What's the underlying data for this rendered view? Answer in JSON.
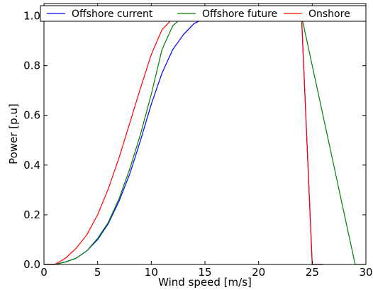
{
  "chart_data": {
    "type": "line",
    "title": "",
    "xlabel": "Wind speed [m/s]",
    "ylabel": "Power [p.u]",
    "xlim": [
      0,
      30
    ],
    "ylim": [
      0,
      1.05
    ],
    "xticks": [
      0,
      5,
      10,
      15,
      20,
      25,
      30
    ],
    "xtick_labels": [
      "0",
      "5",
      "10",
      "15",
      "20",
      "25",
      "30"
    ],
    "yticks": [
      0,
      0.2,
      0.4,
      0.6,
      0.8,
      1.0
    ],
    "ytick_labels": [
      "0.0",
      "0.2",
      "0.4",
      "0.6",
      "0.8",
      "1.0"
    ],
    "grid": false,
    "legend_position": "top",
    "series": [
      {
        "name": "Offshore current",
        "color": "#0000ff",
        "x": [
          0,
          1,
          2,
          3,
          4,
          5,
          6,
          7,
          8,
          9,
          10,
          11,
          12,
          13,
          14,
          15,
          16,
          24,
          25,
          26
        ],
        "y": [
          0,
          0,
          0.01,
          0.025,
          0.055,
          0.1,
          0.165,
          0.255,
          0.365,
          0.5,
          0.645,
          0.77,
          0.865,
          0.925,
          0.97,
          0.99,
          1.0,
          1.0,
          0,
          0
        ]
      },
      {
        "name": "Offshore future",
        "color": "#008000",
        "x": [
          0,
          1,
          2,
          3,
          4,
          5,
          6,
          7,
          8,
          9,
          10,
          11,
          12,
          13,
          24,
          29,
          30
        ],
        "y": [
          0,
          0,
          0.01,
          0.025,
          0.055,
          0.105,
          0.17,
          0.265,
          0.385,
          0.525,
          0.685,
          0.865,
          0.96,
          1.0,
          1.0,
          0,
          0
        ]
      },
      {
        "name": "Onshore",
        "color": "#ff0000",
        "x": [
          0,
          1,
          2,
          3,
          4,
          5,
          6,
          7,
          8,
          9,
          10,
          11,
          12,
          13,
          24,
          25,
          26
        ],
        "y": [
          0,
          0,
          0.025,
          0.065,
          0.12,
          0.2,
          0.305,
          0.43,
          0.57,
          0.71,
          0.845,
          0.945,
          0.99,
          1.0,
          1.0,
          0,
          0
        ]
      }
    ]
  }
}
